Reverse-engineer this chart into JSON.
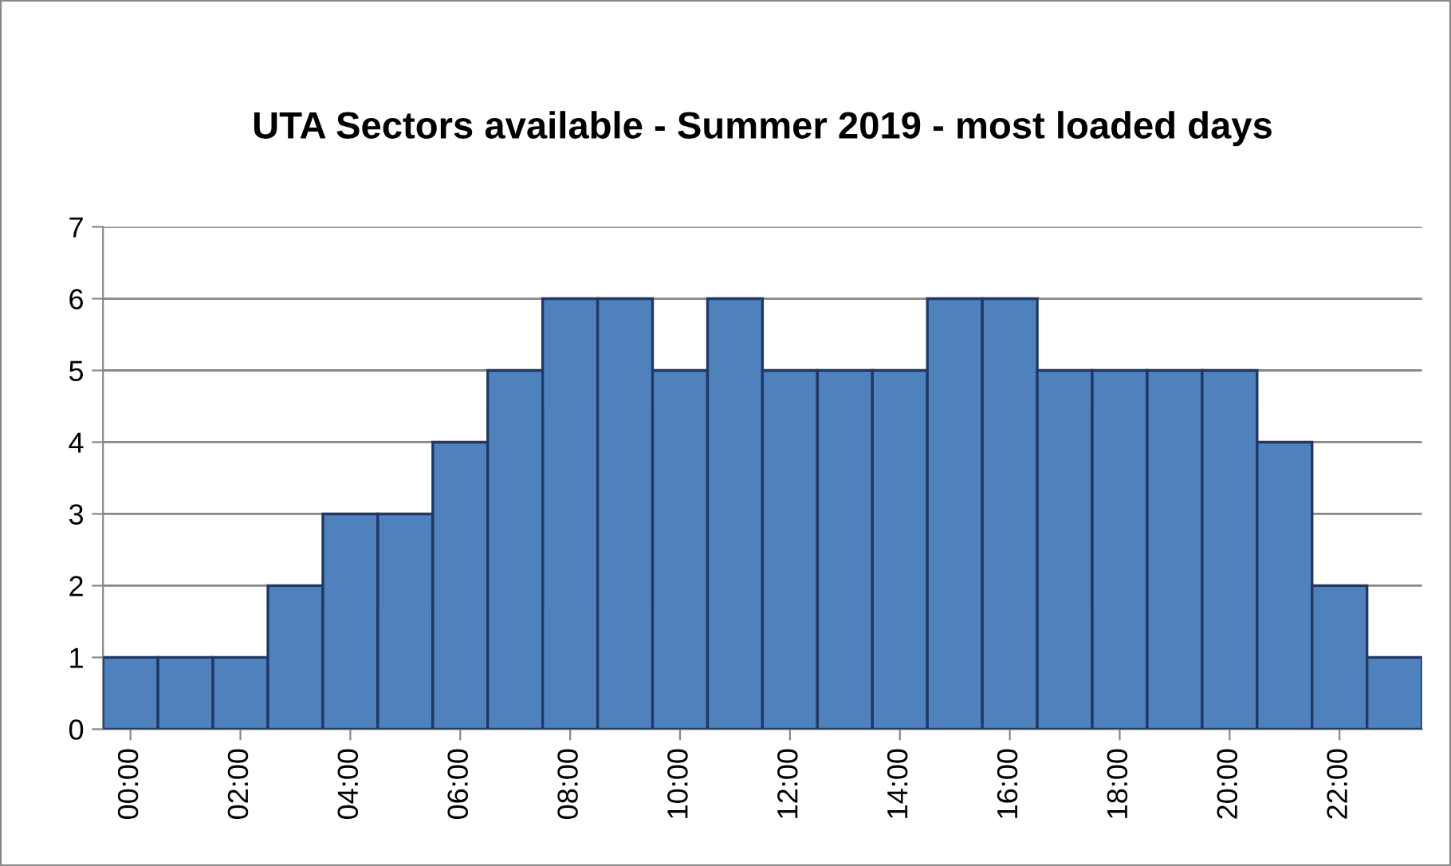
{
  "chart_data": {
    "type": "bar",
    "title": "UTA Sectors available - Summer 2019 - most loaded days",
    "categories": [
      "00:00",
      null,
      "02:00",
      null,
      "04:00",
      null,
      "06:00",
      null,
      "08:00",
      null,
      "10:00",
      null,
      "12:00",
      null,
      "14:00",
      null,
      "16:00",
      null,
      "18:00",
      null,
      "20:00",
      null,
      "22:00",
      null
    ],
    "values": [
      1,
      1,
      1,
      2,
      3,
      3,
      4,
      5,
      6,
      6,
      5,
      6,
      5,
      5,
      5,
      6,
      6,
      5,
      5,
      5,
      5,
      4,
      2,
      1
    ],
    "color": "#4f81bd",
    "ylim": [
      0,
      7
    ],
    "yticks": [
      0,
      1,
      2,
      3,
      4,
      5,
      6,
      7
    ],
    "grid": "y"
  }
}
